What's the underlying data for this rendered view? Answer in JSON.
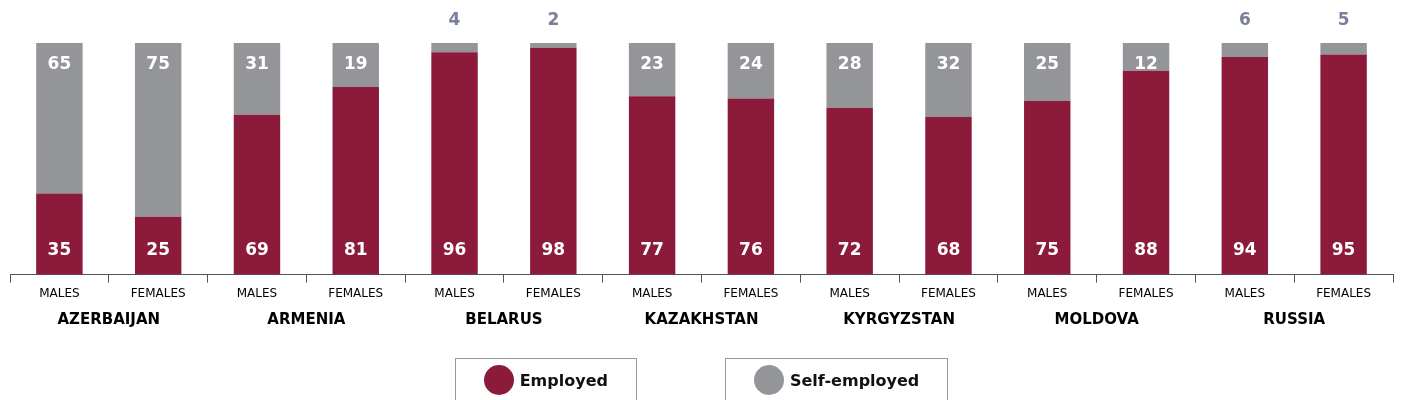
{
  "chart_data": {
    "type": "bar",
    "stacked": true,
    "data_labels": true,
    "grid": false,
    "legend": "bottom",
    "categories": [
      "MALES",
      "FEMALES",
      "MALES",
      "FEMALES",
      "MALES",
      "FEMALES",
      "MALES",
      "FEMALES",
      "MALES",
      "FEMALES",
      "MALES",
      "FEMALES",
      "MALES",
      "FEMALES"
    ],
    "annotations": [
      "AZERBAIJAN",
      "ARMENIA",
      "BELARUS",
      "KAZAKHSTAN",
      "KYRGYZSTAN",
      "MOLDOVA",
      "RUSSIA"
    ],
    "series": [
      {
        "name": "Employed",
        "color": "#8c1a3b",
        "values": [
          35,
          25,
          69,
          81,
          96,
          98,
          77,
          76,
          72,
          68,
          75,
          88,
          94,
          95
        ]
      },
      {
        "name": "Self-employed",
        "color": "#939598",
        "values": [
          65,
          75,
          31,
          19,
          4,
          2,
          23,
          24,
          28,
          32,
          25,
          12,
          6,
          5
        ]
      }
    ]
  }
}
